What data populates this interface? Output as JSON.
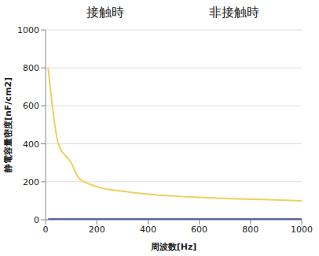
{
  "chart_data": {
    "type": "line",
    "x_label": "周波数[Hz]",
    "y_label": "静電容量密度[nF/cm2]",
    "x": [
      10,
      50,
      100,
      130,
      200,
      300,
      400,
      500,
      600,
      700,
      800,
      900,
      1000
    ],
    "series": [
      {
        "name": "接触時",
        "color": "#f2cf5b",
        "values": [
          800,
          400,
          300,
          220,
          175,
          150,
          135,
          125,
          118,
          112,
          108,
          105,
          100
        ]
      },
      {
        "name": "非接触時",
        "color": "#2b3a9a",
        "values": [
          3,
          3,
          3,
          3,
          3,
          3,
          3,
          3,
          3,
          3,
          3,
          3,
          3
        ]
      }
    ],
    "xlim": [
      0,
      1000
    ],
    "ylim": [
      0,
      1000
    ],
    "xticks": [
      0,
      200,
      400,
      600,
      800,
      1000
    ],
    "yticks": [
      0,
      200,
      400,
      600,
      800,
      1000
    ],
    "grid": true,
    "legend": "top"
  }
}
